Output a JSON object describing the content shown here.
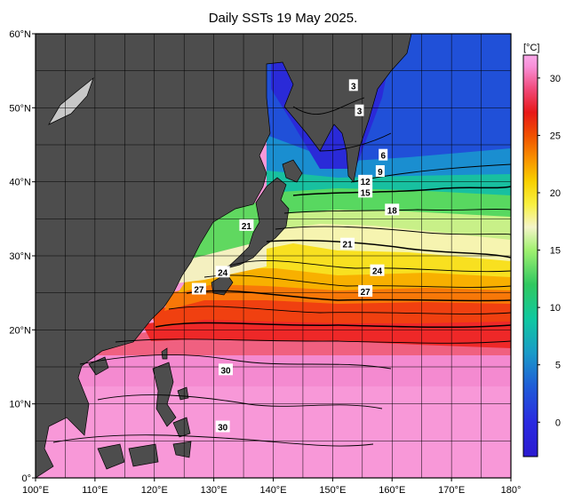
{
  "title": "Daily SSTs 19 May 2025.",
  "map": {
    "lat_range": [
      0,
      60
    ],
    "lon_range": [
      100,
      180
    ],
    "lat_ticks": [
      {
        "value": 60,
        "label": "60°N"
      },
      {
        "value": 50,
        "label": "50°N"
      },
      {
        "value": 40,
        "label": "40°N"
      },
      {
        "value": 30,
        "label": "30°N"
      },
      {
        "value": 20,
        "label": "20°N"
      },
      {
        "value": 10,
        "label": "10°N"
      },
      {
        "value": 0,
        "label": "0°"
      }
    ],
    "lon_ticks": [
      {
        "value": 100,
        "label": "100°E"
      },
      {
        "value": 110,
        "label": "110°E"
      },
      {
        "value": 120,
        "label": "120°E"
      },
      {
        "value": 130,
        "label": "130°E"
      },
      {
        "value": 140,
        "label": "140°E"
      },
      {
        "value": 150,
        "label": "150°E"
      },
      {
        "value": 160,
        "label": "160°E"
      },
      {
        "value": 170,
        "label": "170°E"
      },
      {
        "value": 180,
        "label": "180°"
      }
    ],
    "land_color": "#4d4d4d",
    "grid_spacing_deg": 5
  },
  "contour_labels": [
    {
      "text": "3",
      "lon": 153.5,
      "lat": 53.0
    },
    {
      "text": "3",
      "lon": 154.5,
      "lat": 49.6
    },
    {
      "text": "6",
      "lon": 158.5,
      "lat": 43.6
    },
    {
      "text": "9",
      "lon": 158.0,
      "lat": 41.4
    },
    {
      "text": "12",
      "lon": 155.5,
      "lat": 40.1
    },
    {
      "text": "15",
      "lon": 155.5,
      "lat": 38.6
    },
    {
      "text": "18",
      "lon": 160.0,
      "lat": 36.2
    },
    {
      "text": "21",
      "lon": 135.5,
      "lat": 34.1
    },
    {
      "text": "21",
      "lon": 152.5,
      "lat": 31.6
    },
    {
      "text": "24",
      "lon": 131.5,
      "lat": 27.8
    },
    {
      "text": "24",
      "lon": 157.5,
      "lat": 28.0
    },
    {
      "text": "27",
      "lon": 127.5,
      "lat": 25.5
    },
    {
      "text": "27",
      "lon": 155.5,
      "lat": 25.2
    },
    {
      "text": "30",
      "lon": 132.0,
      "lat": 14.6
    },
    {
      "text": "30",
      "lon": 131.5,
      "lat": 6.9
    }
  ],
  "colorbar": {
    "unit": "[°C]",
    "range": [
      -3,
      32
    ],
    "ticks": [
      30,
      25,
      20,
      15,
      10,
      5,
      0
    ],
    "stops": [
      {
        "v": -3,
        "c": "#2b1ad0"
      },
      {
        "v": 0,
        "c": "#2a2ae0"
      },
      {
        "v": 3,
        "c": "#1f5ad8"
      },
      {
        "v": 6,
        "c": "#1a9ac8"
      },
      {
        "v": 9,
        "c": "#10c8a0"
      },
      {
        "v": 12,
        "c": "#30c860"
      },
      {
        "v": 15,
        "c": "#a0f070"
      },
      {
        "v": 17,
        "c": "#f4f4c8"
      },
      {
        "v": 19,
        "c": "#f8f040"
      },
      {
        "v": 21,
        "c": "#f8d000"
      },
      {
        "v": 23,
        "c": "#f89000"
      },
      {
        "v": 25,
        "c": "#f05000"
      },
      {
        "v": 27,
        "c": "#e81818"
      },
      {
        "v": 29,
        "c": "#f04878"
      },
      {
        "v": 31,
        "c": "#f890d8"
      },
      {
        "v": 32,
        "c": "#f8a8e8"
      }
    ]
  }
}
